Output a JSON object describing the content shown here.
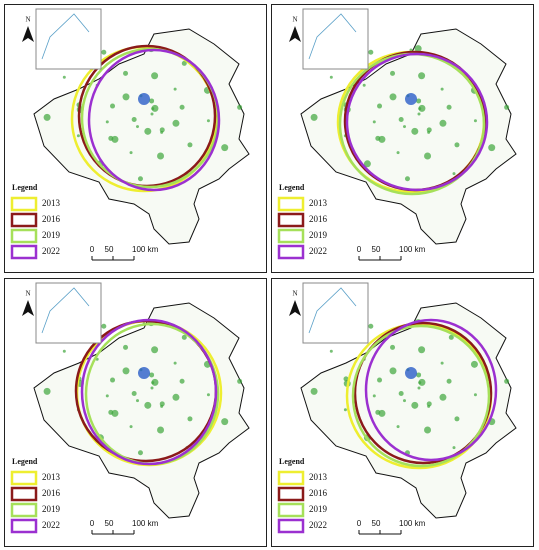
{
  "panels": [
    {
      "north": "N",
      "legend": {
        "title": "Legend",
        "entries": [
          "2013",
          "2016",
          "2019",
          "2022"
        ]
      },
      "scale": [
        "0",
        "50",
        "100 km"
      ]
    },
    {
      "north": "N",
      "legend": {
        "title": "Legend",
        "entries": [
          "2013",
          "2016",
          "2019",
          "2022"
        ]
      },
      "scale": [
        "0",
        "50",
        "100 km"
      ]
    },
    {
      "north": "N",
      "legend": {
        "title": "Legend",
        "entries": [
          "2013",
          "2016",
          "2019",
          "2022"
        ]
      },
      "scale": [
        "0",
        "50",
        "100 km"
      ]
    },
    {
      "north": "N",
      "legend": {
        "title": "Legend",
        "entries": [
          "2013",
          "2016",
          "2019",
          "2022"
        ]
      },
      "scale": [
        "0",
        "50",
        "100 km"
      ]
    }
  ]
}
